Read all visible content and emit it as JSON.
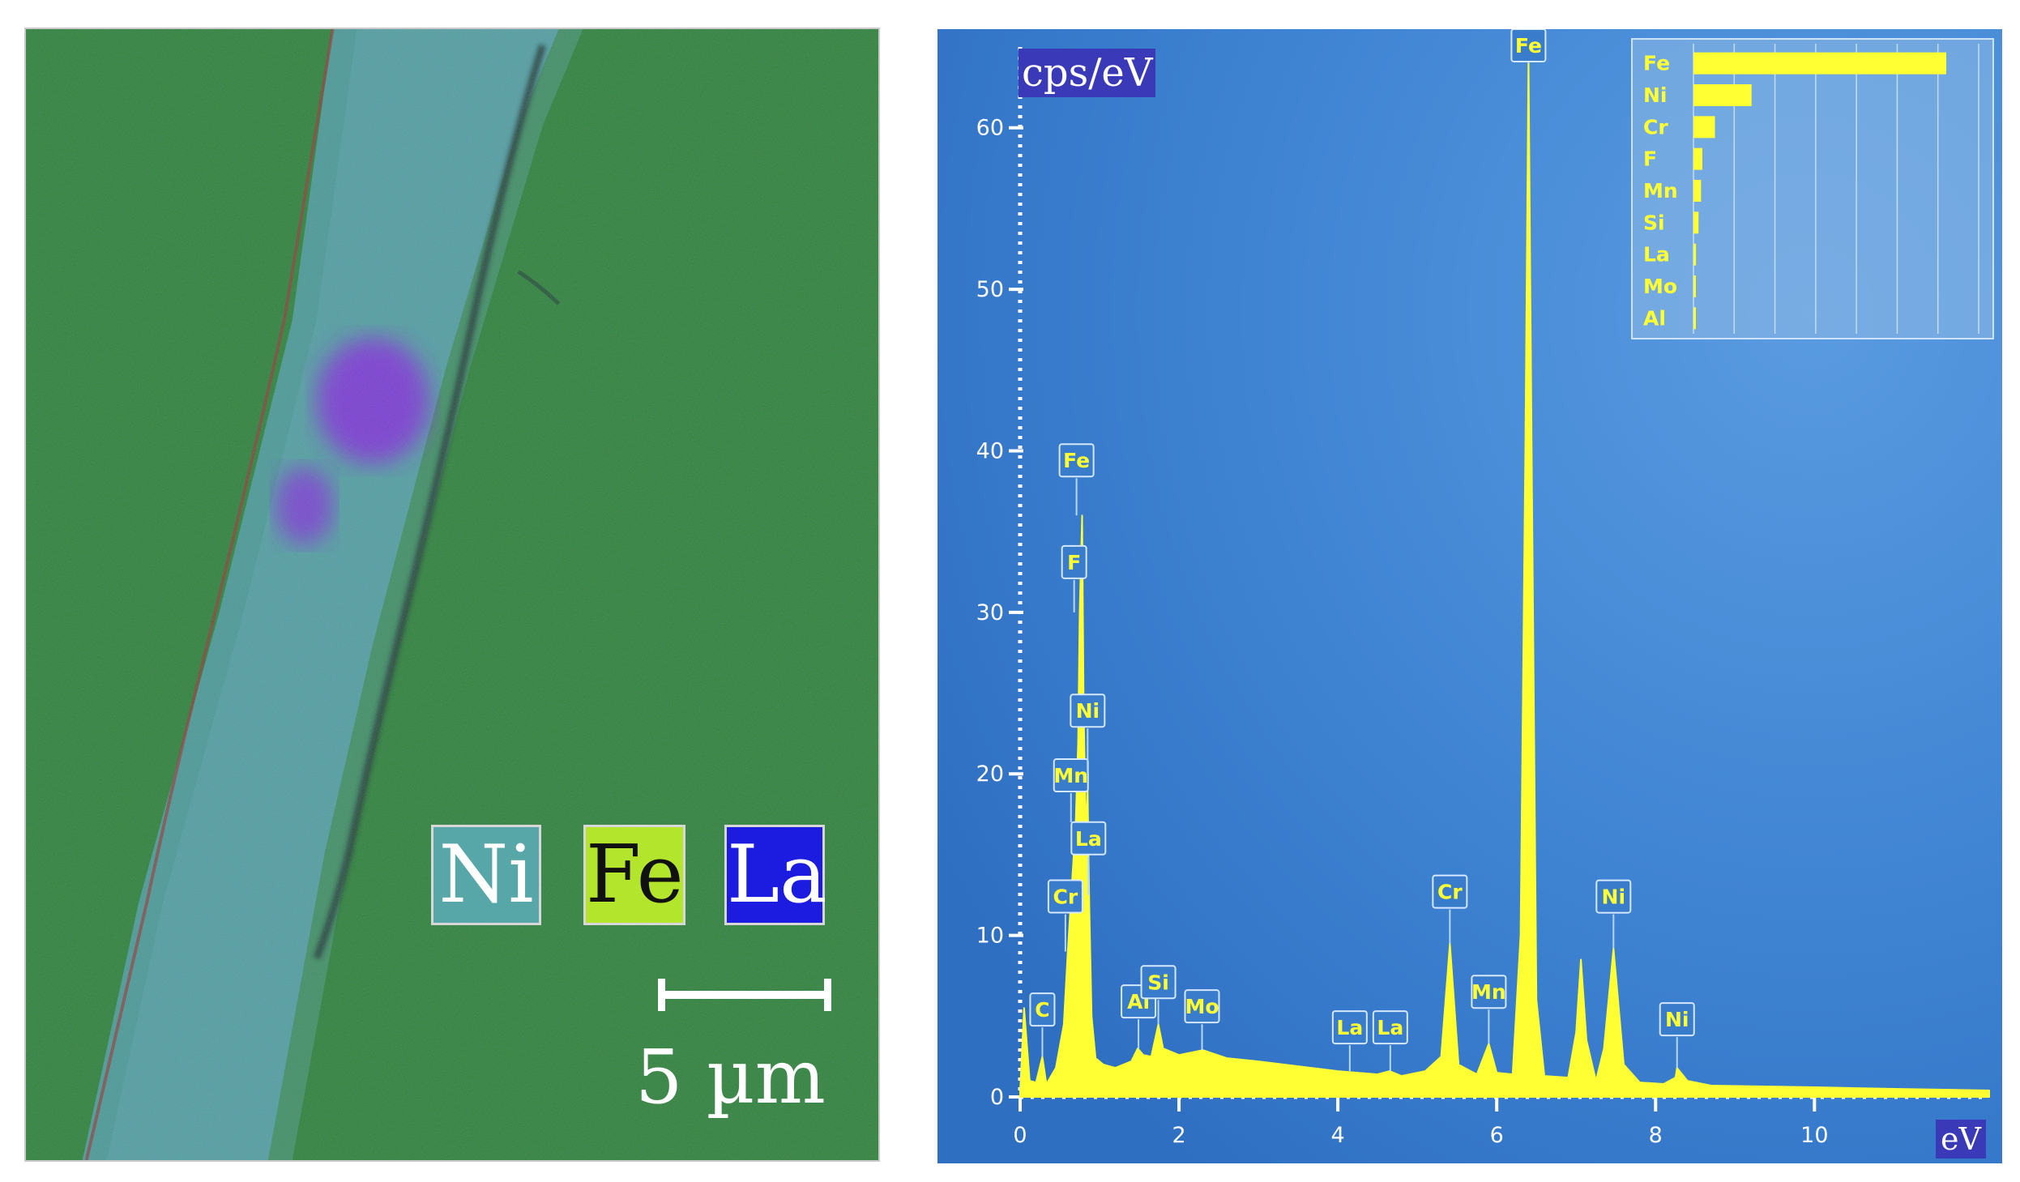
{
  "map": {
    "legend": [
      {
        "element": "Ni",
        "color": "#57a7a8"
      },
      {
        "element": "Fe",
        "color": "#b4e52d"
      },
      {
        "element": "La",
        "color": "#1c1ce0"
      }
    ],
    "scale_label": "5 µm"
  },
  "chart_data": {
    "type": "line",
    "ylabel": "cps/eV",
    "xlabel": "eV",
    "xlim": [
      0,
      12.2
    ],
    "ylim": [
      0,
      65
    ],
    "x_ticks": [
      "0",
      "2",
      "4",
      "6",
      "8",
      "10"
    ],
    "y_ticks": [
      "0",
      "10",
      "20",
      "30",
      "40",
      "50",
      "60"
    ],
    "grid": false,
    "series_color": "#ffff33",
    "spectrum_points": [
      [
        0.0,
        0.3
      ],
      [
        0.05,
        5.5
      ],
      [
        0.12,
        1.0
      ],
      [
        0.2,
        0.9
      ],
      [
        0.28,
        2.5
      ],
      [
        0.33,
        0.8
      ],
      [
        0.45,
        1.8
      ],
      [
        0.55,
        4.5
      ],
      [
        0.6,
        9.0
      ],
      [
        0.65,
        13.0
      ],
      [
        0.7,
        17.0
      ],
      [
        0.73,
        22.0
      ],
      [
        0.75,
        30.0
      ],
      [
        0.78,
        36.0
      ],
      [
        0.8,
        24.0
      ],
      [
        0.83,
        16.0
      ],
      [
        0.85,
        19.0
      ],
      [
        0.87,
        12.0
      ],
      [
        0.9,
        5.0
      ],
      [
        0.95,
        2.4
      ],
      [
        1.05,
        2.0
      ],
      [
        1.2,
        1.8
      ],
      [
        1.4,
        2.2
      ],
      [
        1.48,
        3.0
      ],
      [
        1.55,
        2.6
      ],
      [
        1.65,
        2.5
      ],
      [
        1.74,
        4.5
      ],
      [
        1.8,
        3.0
      ],
      [
        2.0,
        2.6
      ],
      [
        2.3,
        2.9
      ],
      [
        2.6,
        2.4
      ],
      [
        3.0,
        2.2
      ],
      [
        3.5,
        1.9
      ],
      [
        4.0,
        1.6
      ],
      [
        4.5,
        1.4
      ],
      [
        4.65,
        1.6
      ],
      [
        4.8,
        1.3
      ],
      [
        5.1,
        1.6
      ],
      [
        5.3,
        2.5
      ],
      [
        5.41,
        9.5
      ],
      [
        5.52,
        2.0
      ],
      [
        5.75,
        1.4
      ],
      [
        5.9,
        3.3
      ],
      [
        6.0,
        1.5
      ],
      [
        6.2,
        1.4
      ],
      [
        6.3,
        10.0
      ],
      [
        6.36,
        40.0
      ],
      [
        6.4,
        64.5
      ],
      [
        6.44,
        40.0
      ],
      [
        6.5,
        6.0
      ],
      [
        6.6,
        1.3
      ],
      [
        6.9,
        1.2
      ],
      [
        7.0,
        4.0
      ],
      [
        7.06,
        8.5
      ],
      [
        7.13,
        3.5
      ],
      [
        7.25,
        1.0
      ],
      [
        7.35,
        3.0
      ],
      [
        7.47,
        9.2
      ],
      [
        7.6,
        2.0
      ],
      [
        7.8,
        0.9
      ],
      [
        8.1,
        0.8
      ],
      [
        8.25,
        1.2
      ],
      [
        8.27,
        1.8
      ],
      [
        8.4,
        1.0
      ],
      [
        8.7,
        0.7
      ],
      [
        10.0,
        0.6
      ],
      [
        11.0,
        0.5
      ],
      [
        12.2,
        0.4
      ]
    ],
    "peak_labels": [
      {
        "label": "C",
        "x": 0.28,
        "y": 2.5
      },
      {
        "label": "Cr",
        "x": 0.57,
        "y": 9.0
      },
      {
        "label": "Mn",
        "x": 0.64,
        "y": 17.0
      },
      {
        "label": "La",
        "x": 0.86,
        "y": 12.5
      },
      {
        "label": "Ni",
        "x": 0.85,
        "y": 20.0
      },
      {
        "label": "F",
        "x": 0.68,
        "y": 30.0
      },
      {
        "label": "Fe",
        "x": 0.71,
        "y": 36.0
      },
      {
        "label": "Al",
        "x": 1.49,
        "y": 3.0
      },
      {
        "label": "Si",
        "x": 1.74,
        "y": 4.5
      },
      {
        "label": "Mo",
        "x": 2.29,
        "y": 2.9
      },
      {
        "label": "La",
        "x": 4.15,
        "y": 1.6
      },
      {
        "label": "La",
        "x": 4.66,
        "y": 1.6
      },
      {
        "label": "Cr",
        "x": 5.41,
        "y": 9.5
      },
      {
        "label": "Mn",
        "x": 5.9,
        "y": 3.3
      },
      {
        "label": "Fe",
        "x": 6.4,
        "y": 64.5
      },
      {
        "label": "Ni",
        "x": 7.47,
        "y": 9.2
      },
      {
        "label": "Ni",
        "x": 8.27,
        "y": 1.8
      }
    ],
    "composition_bars": [
      {
        "element": "Fe",
        "value": 100
      },
      {
        "element": "Ni",
        "value": 23
      },
      {
        "element": "Cr",
        "value": 8.5
      },
      {
        "element": "F",
        "value": 3.5
      },
      {
        "element": "Mn",
        "value": 3
      },
      {
        "element": "Si",
        "value": 2
      },
      {
        "element": "La",
        "value": 1
      },
      {
        "element": "Mo",
        "value": 0.8
      },
      {
        "element": "Al",
        "value": 0.6
      }
    ]
  }
}
